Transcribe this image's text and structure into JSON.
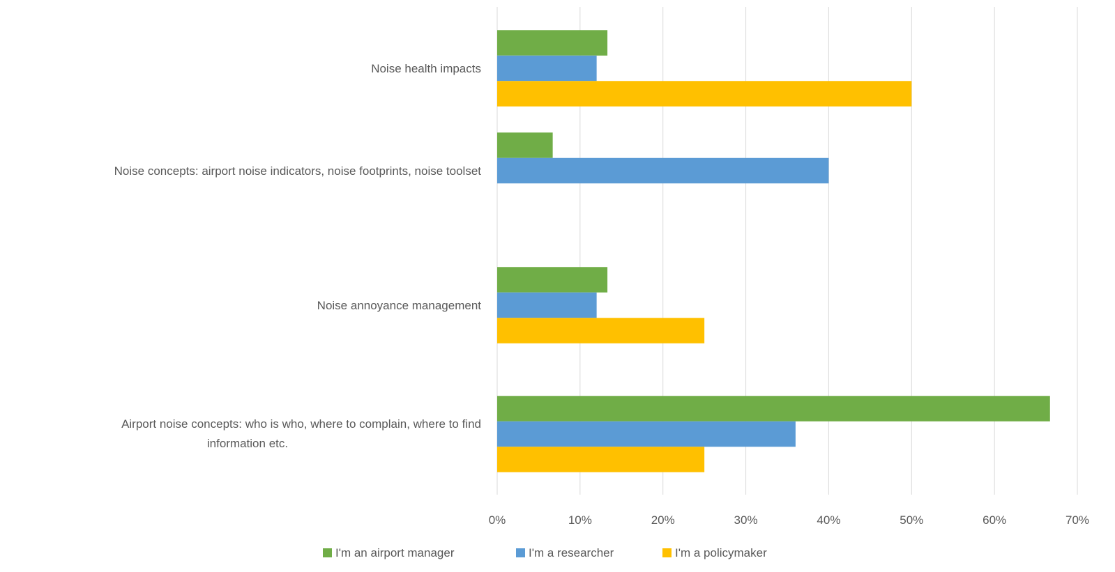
{
  "chart_data": {
    "type": "bar",
    "orientation": "horizontal",
    "title": "",
    "xlabel": "",
    "ylabel": "",
    "xlim": [
      0,
      70
    ],
    "x_ticks": [
      "0%",
      "10%",
      "20%",
      "30%",
      "40%",
      "50%",
      "60%",
      "70%"
    ],
    "grid": true,
    "legend_position": "bottom",
    "categories": [
      [
        "Noise health impacts"
      ],
      [
        "Noise concepts: airport noise indicators, noise footprints, noise toolset"
      ],
      [
        "Noise annoyance management"
      ],
      [
        "Airport noise concepts: who is who, where to complain, where to find",
        "information etc."
      ]
    ],
    "series": [
      {
        "name": "I'm an airport manager",
        "color": "#70AD47",
        "values": [
          13.3,
          6.7,
          13.3,
          66.7
        ]
      },
      {
        "name": "I'm a researcher",
        "color": "#5B9BD5",
        "values": [
          12,
          40,
          12,
          36
        ]
      },
      {
        "name": "I'm a policymaker",
        "color": "#FFC000",
        "values": [
          50,
          0,
          25,
          25
        ]
      }
    ]
  }
}
